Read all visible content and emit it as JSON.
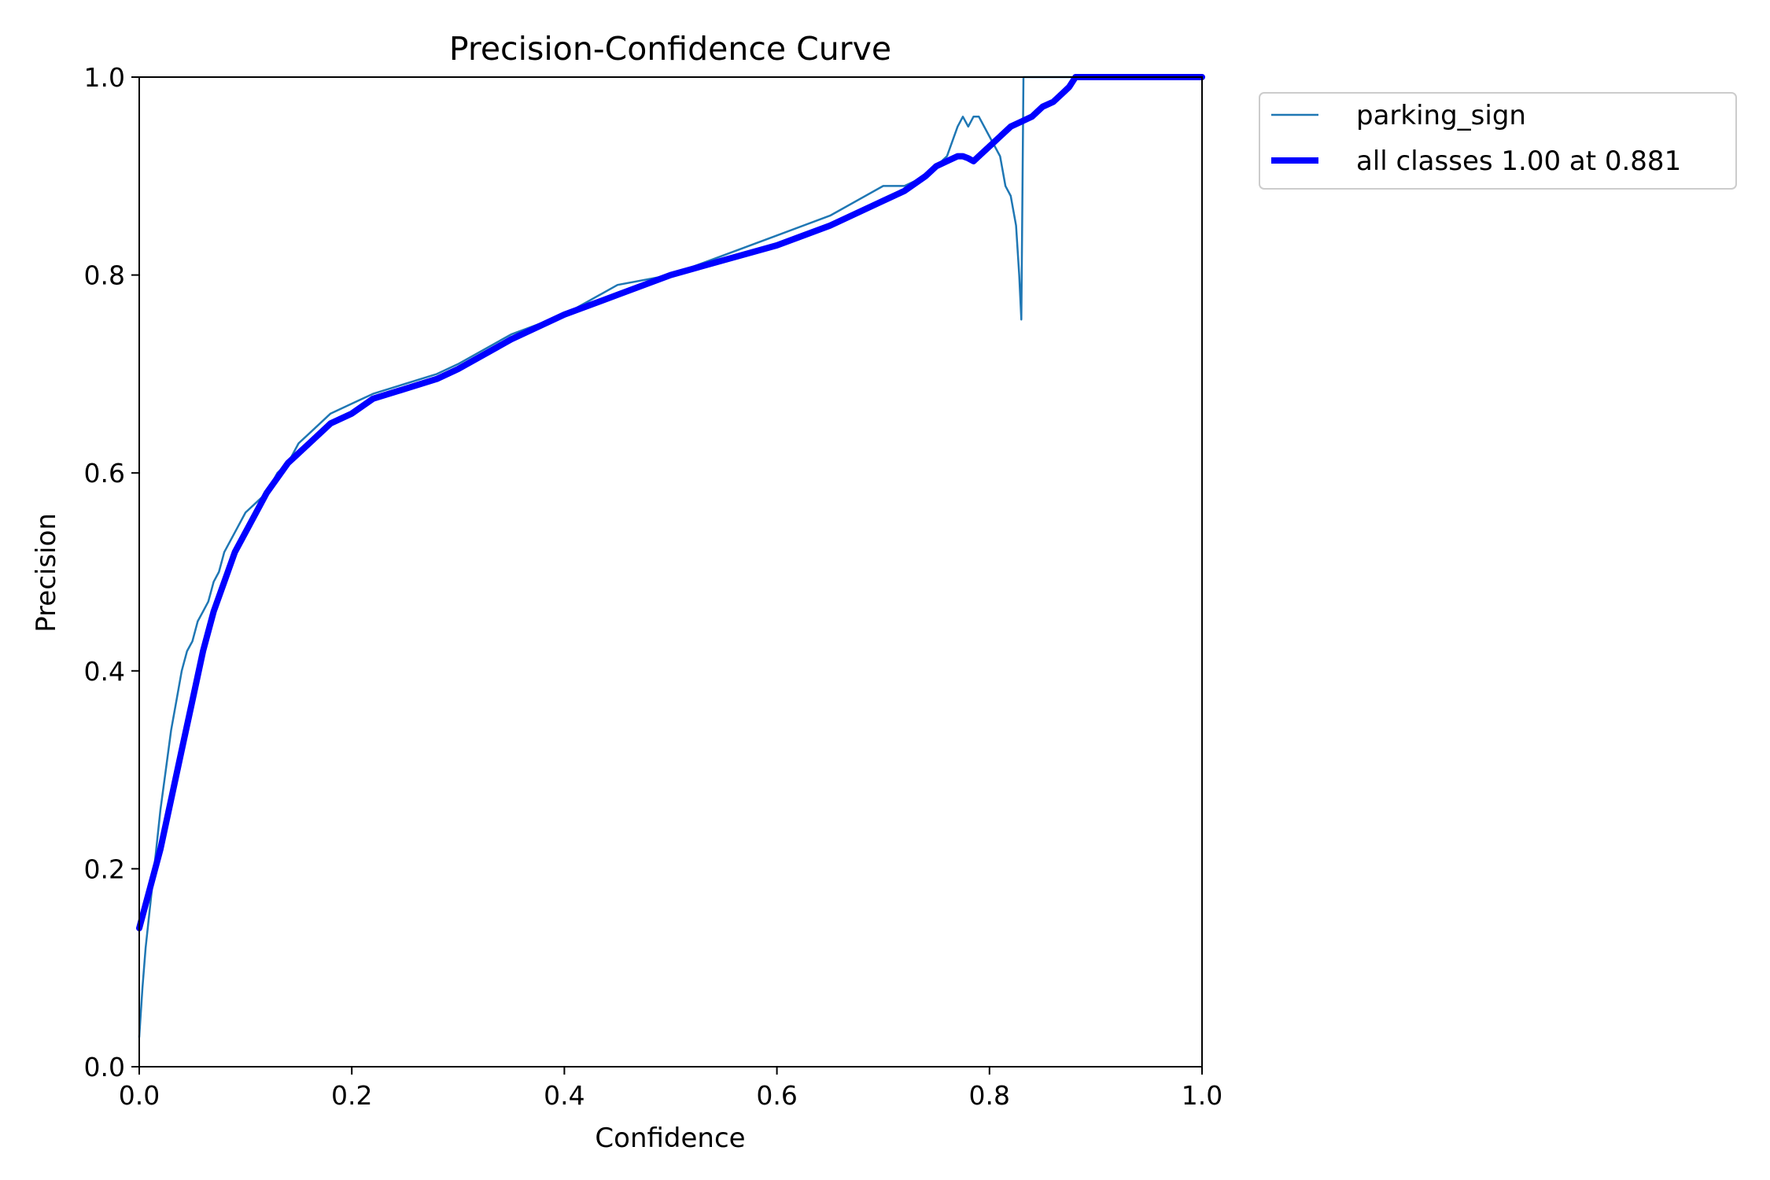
{
  "chart_data": {
    "type": "line",
    "title": "Precision-Confidence Curve",
    "xlabel": "Confidence",
    "ylabel": "Precision",
    "xlim": [
      0,
      1
    ],
    "ylim": [
      0,
      1
    ],
    "xticks": [
      "0.0",
      "0.2",
      "0.4",
      "0.6",
      "0.8",
      "1.0"
    ],
    "yticks": [
      "0.0",
      "0.2",
      "0.4",
      "0.6",
      "0.8",
      "1.0"
    ],
    "grid": false,
    "legend_position": "outside-top-right",
    "series": [
      {
        "name": "parking_sign",
        "color": "#1f77b4",
        "x": [
          0.0,
          0.003,
          0.006,
          0.01,
          0.015,
          0.02,
          0.025,
          0.03,
          0.035,
          0.04,
          0.045,
          0.05,
          0.055,
          0.06,
          0.065,
          0.07,
          0.075,
          0.08,
          0.09,
          0.1,
          0.11,
          0.12,
          0.13,
          0.14,
          0.15,
          0.16,
          0.17,
          0.18,
          0.2,
          0.22,
          0.25,
          0.28,
          0.3,
          0.35,
          0.4,
          0.45,
          0.5,
          0.55,
          0.6,
          0.65,
          0.7,
          0.72,
          0.74,
          0.75,
          0.76,
          0.77,
          0.775,
          0.78,
          0.785,
          0.79,
          0.8,
          0.81,
          0.815,
          0.82,
          0.825,
          0.828,
          0.83,
          0.832,
          0.835,
          0.84,
          0.85,
          0.86,
          0.87,
          0.88,
          0.9,
          0.95,
          1.0
        ],
        "values": [
          0.03,
          0.08,
          0.12,
          0.16,
          0.21,
          0.26,
          0.3,
          0.34,
          0.37,
          0.4,
          0.42,
          0.43,
          0.45,
          0.46,
          0.47,
          0.49,
          0.5,
          0.52,
          0.54,
          0.56,
          0.57,
          0.58,
          0.6,
          0.61,
          0.63,
          0.64,
          0.65,
          0.66,
          0.67,
          0.68,
          0.69,
          0.7,
          0.71,
          0.74,
          0.76,
          0.79,
          0.8,
          0.82,
          0.84,
          0.86,
          0.89,
          0.89,
          0.9,
          0.91,
          0.92,
          0.95,
          0.96,
          0.95,
          0.96,
          0.96,
          0.94,
          0.92,
          0.89,
          0.88,
          0.85,
          0.8,
          0.755,
          1.0,
          1.0,
          1.0,
          1.0,
          1.0,
          1.0,
          1.0,
          1.0,
          1.0,
          1.0
        ]
      },
      {
        "name": "all classes 1.00 at 0.881",
        "color": "#0000ff",
        "x": [
          0.0,
          0.01,
          0.02,
          0.03,
          0.04,
          0.05,
          0.06,
          0.07,
          0.08,
          0.09,
          0.1,
          0.12,
          0.14,
          0.16,
          0.18,
          0.2,
          0.22,
          0.25,
          0.28,
          0.3,
          0.35,
          0.4,
          0.45,
          0.5,
          0.55,
          0.6,
          0.65,
          0.7,
          0.72,
          0.74,
          0.75,
          0.76,
          0.77,
          0.775,
          0.78,
          0.785,
          0.79,
          0.8,
          0.81,
          0.82,
          0.83,
          0.84,
          0.85,
          0.86,
          0.87,
          0.875,
          0.881,
          0.9,
          0.95,
          1.0
        ],
        "values": [
          0.14,
          0.18,
          0.22,
          0.27,
          0.32,
          0.37,
          0.42,
          0.46,
          0.49,
          0.52,
          0.54,
          0.58,
          0.61,
          0.63,
          0.65,
          0.66,
          0.675,
          0.685,
          0.695,
          0.705,
          0.735,
          0.76,
          0.78,
          0.8,
          0.815,
          0.83,
          0.85,
          0.875,
          0.885,
          0.9,
          0.91,
          0.915,
          0.92,
          0.92,
          0.918,
          0.915,
          0.92,
          0.93,
          0.94,
          0.95,
          0.955,
          0.96,
          0.97,
          0.975,
          0.985,
          0.99,
          1.0,
          1.0,
          1.0,
          1.0
        ]
      }
    ]
  }
}
